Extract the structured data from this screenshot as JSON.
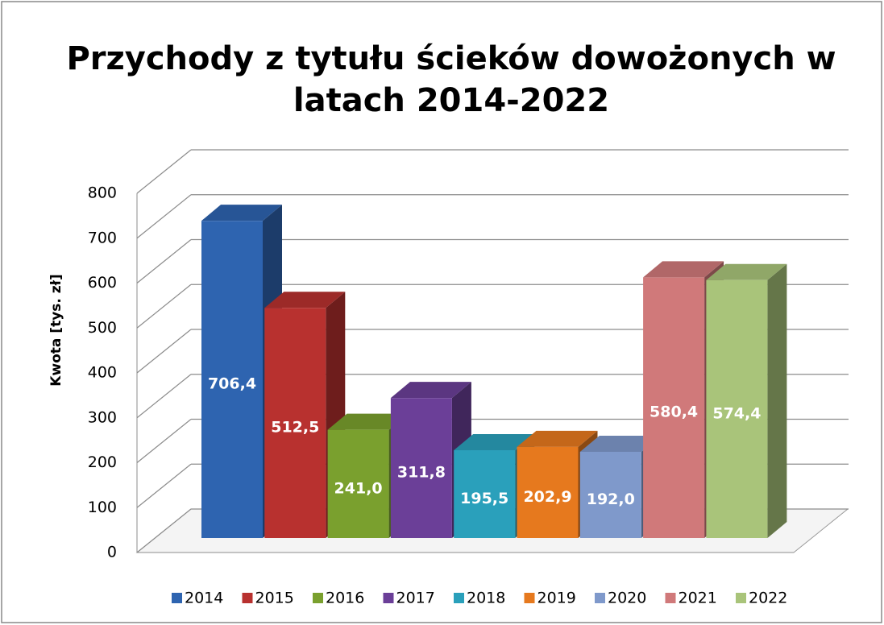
{
  "chart_data": {
    "type": "bar3d",
    "title": "Przychody z tytułu ścieków dowożonych w latach 2014-2022",
    "y_label": "Kwota  [tys. zł]",
    "categories": [
      "2014"
    ],
    "series": [
      {
        "name": "2014",
        "color": "#2e64b0",
        "values": [
          706.4
        ],
        "value_labels": [
          "706,4"
        ]
      },
      {
        "name": "2015",
        "color": "#b8312f",
        "values": [
          512.5
        ],
        "value_labels": [
          "512,5"
        ]
      },
      {
        "name": "2016",
        "color": "#7aa02e",
        "values": [
          241.0
        ],
        "value_labels": [
          "241,0"
        ]
      },
      {
        "name": "2017",
        "color": "#6b3f98",
        "values": [
          311.8
        ],
        "value_labels": [
          "311,8"
        ]
      },
      {
        "name": "2018",
        "color": "#2aa0bb",
        "values": [
          195.5
        ],
        "value_labels": [
          "195,5"
        ]
      },
      {
        "name": "2019",
        "color": "#e6791e",
        "values": [
          202.9
        ],
        "value_labels": [
          "202,9"
        ]
      },
      {
        "name": "2020",
        "color": "#7f99cb",
        "values": [
          192.0
        ],
        "value_labels": [
          "192,0"
        ]
      },
      {
        "name": "2021",
        "color": "#d0797a",
        "values": [
          580.4
        ],
        "value_labels": [
          "580,4"
        ]
      },
      {
        "name": "2022",
        "color": "#a9c47a",
        "values": [
          574.4
        ],
        "value_labels": [
          "574,4"
        ]
      }
    ],
    "ylim": [
      0,
      800
    ],
    "yticks": [
      0,
      100,
      200,
      300,
      400,
      500,
      600,
      700,
      800
    ],
    "grid": true,
    "legend": "bottom"
  }
}
